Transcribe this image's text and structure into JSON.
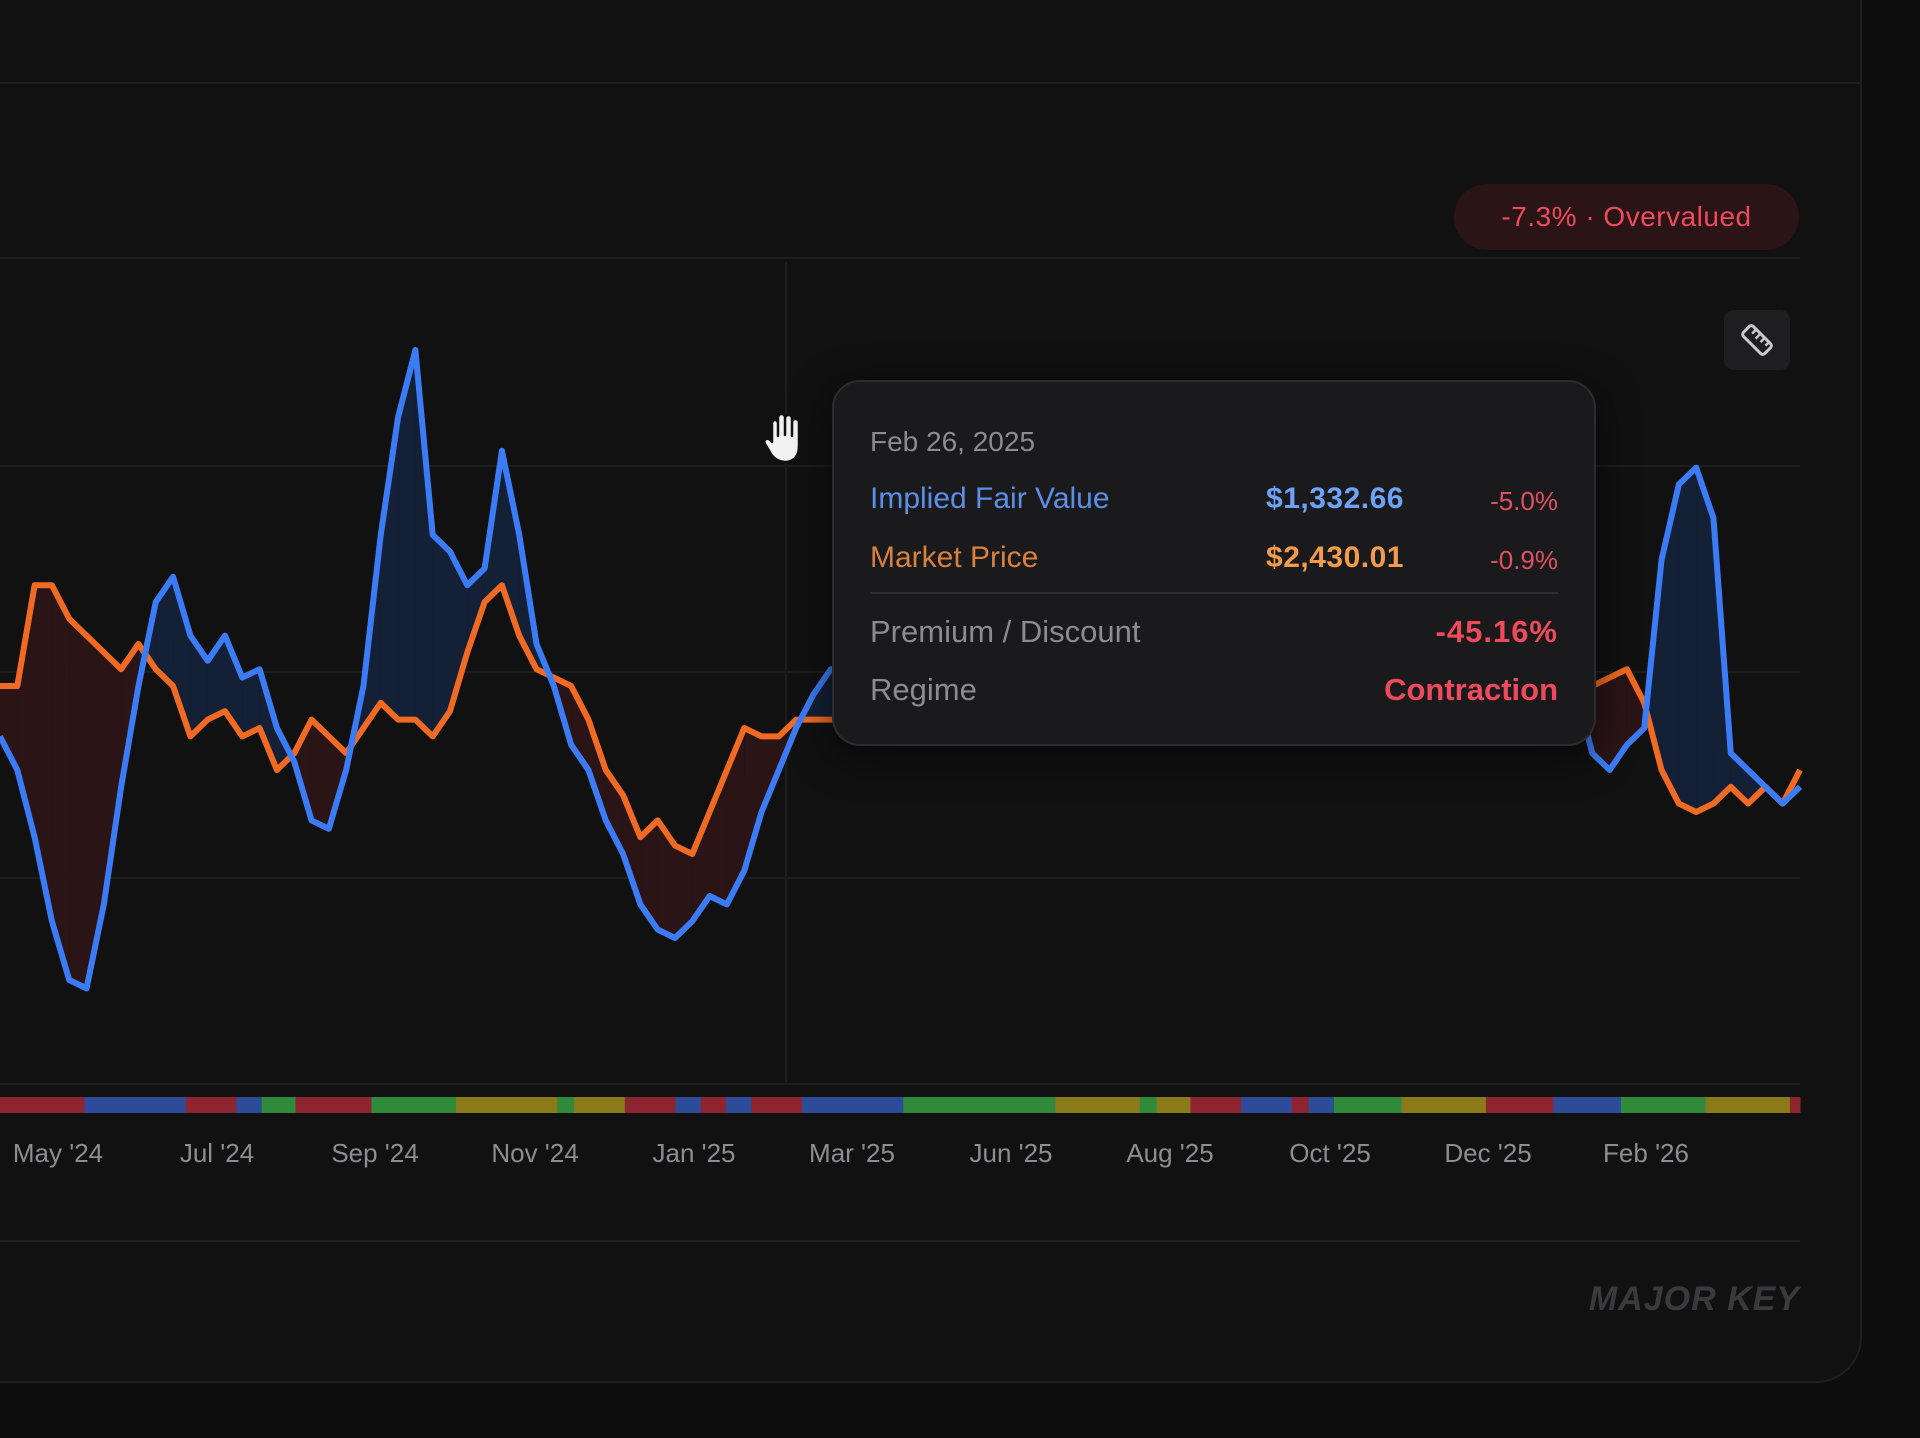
{
  "badge": {
    "text": "-7.3% · Overvalued",
    "color": "#ef4a5c"
  },
  "toolbar": {
    "ruler_icon": "ruler-icon"
  },
  "tooltip": {
    "date": "Feb 26, 2025",
    "fair_value": {
      "label": "Implied Fair Value",
      "value": "$1,332.66",
      "change": "-5.0%"
    },
    "market_price": {
      "label": "Market Price",
      "value": "$2,430.01",
      "change": "-0.9%"
    },
    "premium": {
      "label": "Premium / Discount",
      "value": "-45.16%"
    },
    "regime": {
      "label": "Regime",
      "value": "Contraction"
    }
  },
  "watermark": "MAJOR KEY",
  "colors": {
    "fair_value": "#3b7cf6",
    "market_price": "#f06a23",
    "negative": "#ef4a5c",
    "regime_bar": [
      "#8e2430",
      "#2c4c9a",
      "#2f8a3a",
      "#8a7a1a"
    ]
  },
  "chart_data": {
    "type": "line",
    "x_ticks": [
      "May '24",
      "Jul '24",
      "Sep '24",
      "Nov '24",
      "Jan '25",
      "Mar '25",
      "Jun '25",
      "Aug '25",
      "Oct '25",
      "Dec '25",
      "Feb '26"
    ],
    "grid": true,
    "series": [
      {
        "name": "Implied Fair Value",
        "color": "#3b7cf6",
        "values": [
          54,
          50,
          42,
          32,
          25,
          24,
          34,
          48,
          60,
          70,
          73,
          66,
          63,
          66,
          61,
          62,
          55,
          51,
          44,
          43,
          50,
          60,
          78,
          92,
          100,
          78,
          76,
          72,
          74,
          88,
          78,
          65,
          60,
          53,
          50,
          44,
          40,
          34,
          31,
          30,
          32,
          35,
          34,
          38,
          45,
          50,
          55,
          59,
          62,
          62,
          62,
          62,
          62,
          62,
          62,
          62,
          62,
          62,
          62,
          62,
          62,
          62,
          62,
          62,
          62,
          62,
          62,
          62,
          62,
          62,
          62,
          62,
          62,
          62,
          62,
          62,
          62,
          62,
          62,
          62,
          62,
          62,
          62,
          62,
          62,
          62,
          62,
          62,
          62,
          62,
          62,
          60,
          52,
          50,
          53,
          55,
          75,
          84,
          86,
          80,
          52,
          50,
          48,
          46,
          48
        ]
      },
      {
        "name": "Market Price",
        "color": "#f06a23",
        "values": [
          60,
          60,
          72,
          72,
          68,
          66,
          64,
          62,
          65,
          62,
          60,
          54,
          56,
          57,
          54,
          55,
          50,
          52,
          56,
          54,
          52,
          55,
          58,
          56,
          56,
          54,
          57,
          64,
          70,
          72,
          66,
          62,
          61,
          60,
          56,
          50,
          47,
          42,
          44,
          41,
          40,
          45,
          50,
          55,
          54,
          54,
          56,
          56,
          56,
          56,
          56,
          56,
          56,
          56,
          56,
          56,
          56,
          56,
          56,
          56,
          56,
          56,
          56,
          56,
          56,
          56,
          56,
          56,
          56,
          56,
          56,
          56,
          56,
          56,
          56,
          56,
          56,
          56,
          56,
          56,
          56,
          56,
          56,
          56,
          56,
          56,
          56,
          56,
          56,
          56,
          56,
          60,
          60,
          61,
          62,
          58,
          50,
          46,
          45,
          46,
          48,
          46,
          48,
          46,
          50
        ]
      }
    ],
    "regime_bar": [
      {
        "regime": "Contraction",
        "weight": 5
      },
      {
        "regime": "Recovery",
        "weight": 6
      },
      {
        "regime": "Contraction",
        "weight": 3
      },
      {
        "regime": "Recovery",
        "weight": 1.5
      },
      {
        "regime": "Expansion",
        "weight": 2
      },
      {
        "regime": "Contraction",
        "weight": 4.5
      },
      {
        "regime": "Expansion",
        "weight": 5
      },
      {
        "regime": "Slowdown",
        "weight": 6
      },
      {
        "regime": "Expansion",
        "weight": 1
      },
      {
        "regime": "Slowdown",
        "weight": 3
      },
      {
        "regime": "Contraction",
        "weight": 3
      },
      {
        "regime": "Recovery",
        "weight": 1.5
      },
      {
        "regime": "Contraction",
        "weight": 1.5
      },
      {
        "regime": "Recovery",
        "weight": 1.5
      },
      {
        "regime": "Contraction",
        "weight": 3
      },
      {
        "regime": "Recovery",
        "weight": 6
      },
      {
        "regime": "Expansion",
        "weight": 9
      },
      {
        "regime": "Slowdown",
        "weight": 5
      },
      {
        "regime": "Expansion",
        "weight": 1
      },
      {
        "regime": "Slowdown",
        "weight": 2
      },
      {
        "regime": "Contraction",
        "weight": 3
      },
      {
        "regime": "Recovery",
        "weight": 3
      },
      {
        "regime": "Contraction",
        "weight": 1
      },
      {
        "regime": "Recovery",
        "weight": 1.5
      },
      {
        "regime": "Expansion",
        "weight": 4
      },
      {
        "regime": "Slowdown",
        "weight": 5
      },
      {
        "regime": "Contraction",
        "weight": 4
      },
      {
        "regime": "Recovery",
        "weight": 4
      },
      {
        "regime": "Expansion",
        "weight": 5
      },
      {
        "regime": "Slowdown",
        "weight": 5
      },
      {
        "regime": "Contraction",
        "weight": 0.6
      }
    ]
  }
}
